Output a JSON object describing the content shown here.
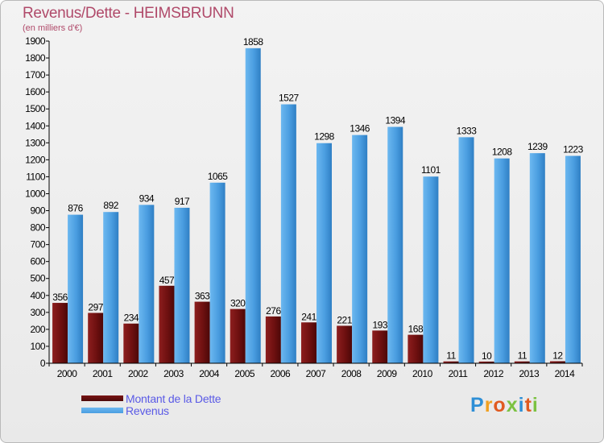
{
  "header": {
    "title": "Revenus/Dette - HEIMSBRUNN",
    "subtitle": "(en milliers d'€)"
  },
  "legend": {
    "items": [
      {
        "label": "Montant de la Dette",
        "color": "#7a1515"
      },
      {
        "label": "Revenus",
        "color": "#4a9de0"
      }
    ]
  },
  "logo": {
    "text": "Proxiti",
    "letters": [
      {
        "ch": "P",
        "color": "#2e8fd6"
      },
      {
        "ch": "r",
        "color": "#f0a020"
      },
      {
        "ch": "o",
        "color": "#e05a20"
      },
      {
        "ch": "x",
        "color": "#7cc242"
      },
      {
        "ch": "i",
        "color": "#2e8fd6"
      },
      {
        "ch": "t",
        "color": "#e05a20"
      },
      {
        "ch": "i",
        "color": "#7cc242"
      }
    ]
  },
  "chart_data": {
    "type": "bar",
    "title": "Revenus/Dette - HEIMSBRUNN",
    "subtitle": "(en milliers d'€)",
    "xlabel": "",
    "ylabel": "",
    "ylim": [
      0,
      1900
    ],
    "ytick_step": 100,
    "grid": false,
    "legend_position": "bottom-left",
    "categories": [
      "2000",
      "2001",
      "2002",
      "2003",
      "2004",
      "2005",
      "2006",
      "2007",
      "2008",
      "2009",
      "2010",
      "2011",
      "2012",
      "2013",
      "2014"
    ],
    "series": [
      {
        "name": "Montant de la Dette",
        "color": "#7a1515",
        "values": [
          356,
          297,
          234,
          457,
          363,
          320,
          276,
          241,
          221,
          193,
          168,
          11,
          10,
          11,
          12
        ]
      },
      {
        "name": "Revenus",
        "color": "#4a9de0",
        "values": [
          876,
          892,
          934,
          917,
          1065,
          1858,
          1527,
          1298,
          1346,
          1394,
          1101,
          1333,
          1208,
          1239,
          1223
        ]
      }
    ]
  }
}
